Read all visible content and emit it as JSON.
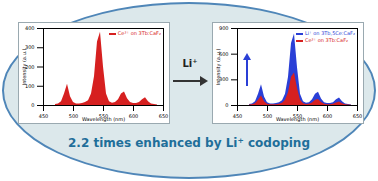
{
  "chart_data": [
    {
      "type": "area",
      "x_label": "Wavelength (nm)",
      "y_label": "Intensity (a.u.)",
      "x": [
        470,
        475,
        480,
        485,
        490,
        495,
        500,
        505,
        510,
        515,
        520,
        525,
        530,
        535,
        540,
        545,
        550,
        555,
        560,
        565,
        570,
        575,
        580,
        585,
        590,
        595,
        600,
        605,
        610,
        615,
        620,
        625,
        630,
        635,
        640
      ],
      "series": [
        {
          "name": "Ce³⁺ on 3Tb:CaF₂",
          "color": "#d62020",
          "values": [
            5,
            8,
            20,
            60,
            110,
            45,
            15,
            8,
            8,
            10,
            15,
            25,
            60,
            150,
            330,
            380,
            200,
            60,
            20,
            12,
            15,
            30,
            60,
            70,
            35,
            15,
            10,
            10,
            15,
            30,
            40,
            20,
            8,
            5,
            3
          ]
        }
      ],
      "xlim": [
        450,
        650
      ],
      "xticks": [
        450,
        500,
        550,
        600,
        650
      ],
      "ylim": [
        0,
        400
      ],
      "yticks": [
        0,
        100,
        200,
        300,
        400
      ],
      "legend": "top-right"
    },
    {
      "type": "area",
      "x_label": "Wavelength (nm)",
      "y_label": "Intensity (a.u.)",
      "x": [
        470,
        475,
        480,
        485,
        490,
        495,
        500,
        505,
        510,
        515,
        520,
        525,
        530,
        535,
        540,
        545,
        550,
        555,
        560,
        565,
        570,
        575,
        580,
        585,
        590,
        595,
        600,
        605,
        610,
        615,
        620,
        625,
        630,
        635,
        640
      ],
      "series": [
        {
          "name": "Li⁺ on 3Tb,5Ce:CaF₂",
          "color": "#2a3fd6",
          "values": [
            11,
            18,
            44,
            132,
            242,
            99,
            33,
            18,
            18,
            22,
            33,
            55,
            132,
            330,
            726,
            836,
            440,
            132,
            44,
            26,
            33,
            66,
            132,
            154,
            77,
            33,
            22,
            22,
            33,
            66,
            88,
            44,
            18,
            11,
            7
          ]
        },
        {
          "name": "Ce³⁺ on 3Tb:CaF₂",
          "color": "#d62020",
          "values": [
            5,
            8,
            20,
            60,
            110,
            45,
            15,
            8,
            8,
            10,
            15,
            25,
            60,
            150,
            330,
            380,
            200,
            60,
            20,
            12,
            15,
            30,
            60,
            70,
            35,
            15,
            10,
            10,
            15,
            30,
            40,
            20,
            8,
            5,
            3
          ]
        }
      ],
      "xlim": [
        450,
        650
      ],
      "xticks": [
        450,
        500,
        550,
        600,
        650
      ],
      "ylim": [
        0,
        900
      ],
      "yticks": [
        0,
        300,
        600,
        900
      ],
      "legend": "top-right"
    }
  ],
  "arrow": {
    "label": "Li⁺"
  },
  "caption": "2.2 times enhanced by Li⁺ codoping"
}
